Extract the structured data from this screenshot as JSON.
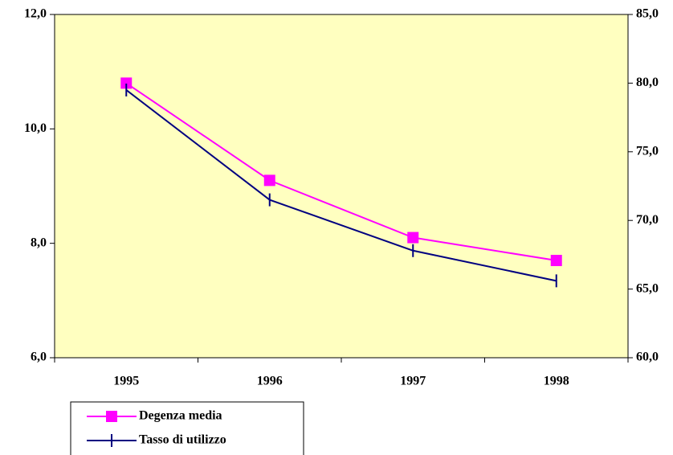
{
  "chart_data": {
    "type": "line",
    "categories": [
      "1995",
      "1996",
      "1997",
      "1998"
    ],
    "series": [
      {
        "name": "Degenza media",
        "color": "#ff00ff",
        "values": [
          10.8,
          9.1,
          8.1,
          7.7
        ]
      },
      {
        "name": "Tasso di utilizzo",
        "color": "#000080",
        "axis": "y2",
        "values": [
          79.5,
          71.5,
          67.8,
          65.6
        ]
      }
    ],
    "ylim": [
      6,
      12
    ],
    "yticks": [
      {
        "value": 6,
        "label": "6,0"
      },
      {
        "value": 8,
        "label": "8,0"
      },
      {
        "value": 10,
        "label": "10,0"
      },
      {
        "value": 12,
        "label": "12,0"
      }
    ],
    "y2lim": [
      60,
      85
    ],
    "y2ticks": [
      {
        "value": 60,
        "label": "60,0"
      },
      {
        "value": 65,
        "label": "65,0"
      },
      {
        "value": 70,
        "label": "70,0"
      },
      {
        "value": 75,
        "label": "75,0"
      },
      {
        "value": 80,
        "label": "80,0"
      },
      {
        "value": 85,
        "label": "85,0"
      }
    ],
    "plot_background": "#ffffc0"
  }
}
